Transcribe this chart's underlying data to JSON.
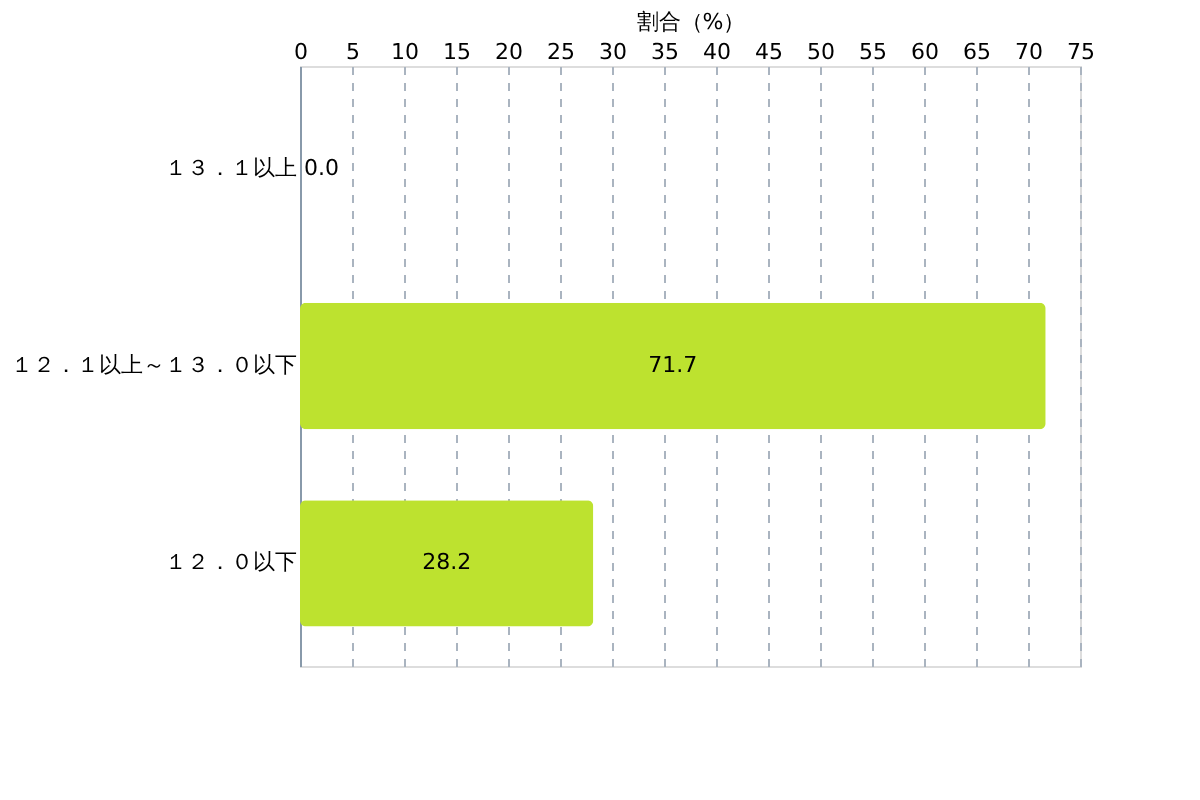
{
  "chart_data": {
    "type": "bar",
    "orientation": "horizontal",
    "xlabel": "割合（%）",
    "categories": [
      "１３．１以上",
      "１２．１以上～１３．０以下",
      "１２．０以下"
    ],
    "values": [
      0.0,
      71.7,
      28.2
    ],
    "value_labels": [
      "0.0",
      "71.7",
      "28.2"
    ],
    "color": "#bde22f",
    "xlim": [
      0,
      75
    ],
    "xticks": [
      0,
      5,
      10,
      15,
      20,
      25,
      30,
      35,
      40,
      45,
      50,
      55,
      60,
      65,
      70,
      75
    ],
    "grid": "x"
  }
}
